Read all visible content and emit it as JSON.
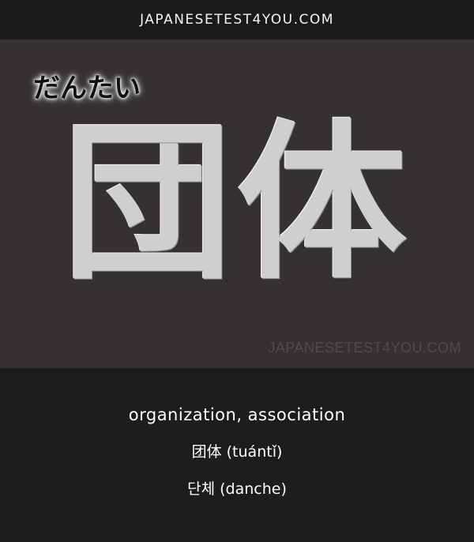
{
  "header": {
    "site": "JAPANESETEST4YOU.COM"
  },
  "card": {
    "reading": "だんたい",
    "kanji": "団体",
    "watermark": "JAPANESETEST4YOU.COM"
  },
  "translations": {
    "english": "organization, association",
    "chinese": "团体 (tuántǐ)",
    "korean": "단체 (danche)"
  }
}
